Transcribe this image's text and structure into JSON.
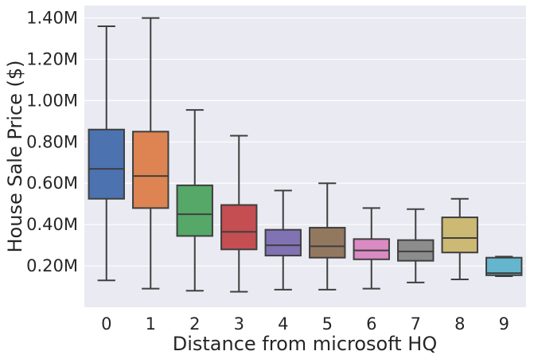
{
  "chart_data": {
    "type": "box",
    "title": "",
    "xlabel": "Distance from microsoft HQ",
    "ylabel": "House Sale Price ($)",
    "ylim": [
      0,
      1460000
    ],
    "yticks": [
      {
        "value": 200000,
        "label": "0.20M"
      },
      {
        "value": 400000,
        "label": "0.40M"
      },
      {
        "value": 600000,
        "label": "0.60M"
      },
      {
        "value": 800000,
        "label": "0.80M"
      },
      {
        "value": 1000000,
        "label": "1.00M"
      },
      {
        "value": 1200000,
        "label": "1.20M"
      },
      {
        "value": 1400000,
        "label": "1.40M"
      }
    ],
    "grid": true,
    "categories": [
      "0",
      "1",
      "2",
      "3",
      "4",
      "5",
      "6",
      "7",
      "8",
      "9"
    ],
    "boxes": [
      {
        "category": "0",
        "whisker_low": 130000,
        "q1": 525000,
        "median": 670000,
        "q3": 860000,
        "whisker_high": 1360000,
        "color": "#4c72b0"
      },
      {
        "category": "1",
        "whisker_low": 90000,
        "q1": 480000,
        "median": 635000,
        "q3": 850000,
        "whisker_high": 1400000,
        "color": "#dd8452"
      },
      {
        "category": "2",
        "whisker_low": 80000,
        "q1": 345000,
        "median": 450000,
        "q3": 590000,
        "whisker_high": 955000,
        "color": "#55a868"
      },
      {
        "category": "3",
        "whisker_low": 75000,
        "q1": 280000,
        "median": 365000,
        "q3": 495000,
        "whisker_high": 830000,
        "color": "#c44e52"
      },
      {
        "category": "4",
        "whisker_low": 85000,
        "q1": 250000,
        "median": 300000,
        "q3": 375000,
        "whisker_high": 565000,
        "color": "#8172b3"
      },
      {
        "category": "5",
        "whisker_low": 85000,
        "q1": 240000,
        "median": 295000,
        "q3": 385000,
        "whisker_high": 600000,
        "color": "#937860"
      },
      {
        "category": "6",
        "whisker_low": 90000,
        "q1": 232000,
        "median": 275000,
        "q3": 330000,
        "whisker_high": 480000,
        "color": "#da8bc3"
      },
      {
        "category": "7",
        "whisker_low": 120000,
        "q1": 225000,
        "median": 270000,
        "q3": 325000,
        "whisker_high": 475000,
        "color": "#8c8c8c"
      },
      {
        "category": "8",
        "whisker_low": 135000,
        "q1": 265000,
        "median": 335000,
        "q3": 435000,
        "whisker_high": 525000,
        "color": "#ccb974"
      },
      {
        "category": "9",
        "whisker_low": 150000,
        "q1": 155000,
        "median": 165000,
        "q3": 240000,
        "whisker_high": 245000,
        "color": "#64b5cd"
      }
    ]
  }
}
